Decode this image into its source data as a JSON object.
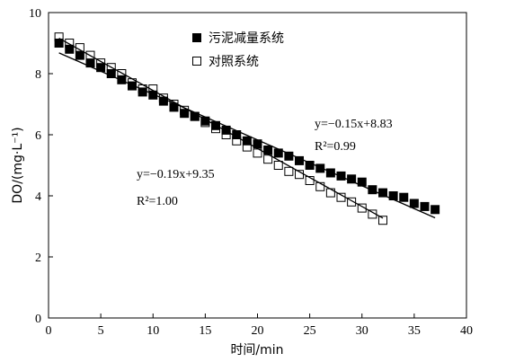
{
  "chart_data": {
    "type": "scatter",
    "xlabel": "时间/min",
    "ylabel": "DO/(mg·L⁻¹)",
    "xlim": [
      0,
      40
    ],
    "ylim": [
      0,
      10
    ],
    "xticks": [
      0,
      5,
      10,
      15,
      20,
      25,
      30,
      35,
      40
    ],
    "yticks": [
      0,
      2,
      4,
      6,
      8,
      10
    ],
    "grid": false,
    "legend_position": "top-left",
    "series": [
      {
        "name": "污泥减量系统",
        "marker": "filled-square",
        "color": "#000000",
        "x": [
          1,
          2,
          3,
          4,
          5,
          6,
          7,
          8,
          9,
          10,
          11,
          12,
          13,
          14,
          15,
          16,
          17,
          18,
          19,
          20,
          21,
          22,
          23,
          24,
          25,
          26,
          27,
          28,
          29,
          30,
          31,
          32,
          33,
          34,
          35,
          36,
          37
        ],
        "y": [
          9.0,
          8.8,
          8.6,
          8.35,
          8.2,
          8.0,
          7.8,
          7.6,
          7.4,
          7.3,
          7.1,
          6.9,
          6.7,
          6.6,
          6.45,
          6.3,
          6.15,
          6.0,
          5.8,
          5.7,
          5.5,
          5.4,
          5.3,
          5.15,
          5.0,
          4.9,
          4.75,
          4.65,
          4.55,
          4.45,
          4.2,
          4.1,
          4.0,
          3.95,
          3.75,
          3.65,
          3.55
        ],
        "fit": {
          "slope": -0.15,
          "intercept": 8.83,
          "x_range": [
            1,
            37
          ],
          "equation": "y=−0.15x+8.83",
          "r2": "R²=0.99"
        }
      },
      {
        "name": "对照系统",
        "marker": "open-square",
        "color": "#000000",
        "x": [
          1,
          2,
          3,
          4,
          5,
          6,
          7,
          8,
          9,
          10,
          11,
          12,
          13,
          14,
          15,
          16,
          17,
          18,
          19,
          20,
          21,
          22,
          23,
          24,
          25,
          26,
          27,
          28,
          29,
          30,
          31,
          32
        ],
        "y": [
          9.2,
          9.0,
          8.85,
          8.6,
          8.35,
          8.2,
          8.0,
          7.7,
          7.5,
          7.5,
          7.2,
          7.0,
          6.8,
          6.6,
          6.4,
          6.2,
          6.0,
          5.8,
          5.6,
          5.4,
          5.2,
          5.0,
          4.8,
          4.7,
          4.5,
          4.3,
          4.1,
          3.95,
          3.8,
          3.6,
          3.4,
          3.2
        ],
        "fit": {
          "slope": -0.19,
          "intercept": 9.35,
          "x_range": [
            1,
            32
          ],
          "equation": "y=−0.19x+9.35",
          "r2": "R²=1.00"
        }
      }
    ]
  }
}
